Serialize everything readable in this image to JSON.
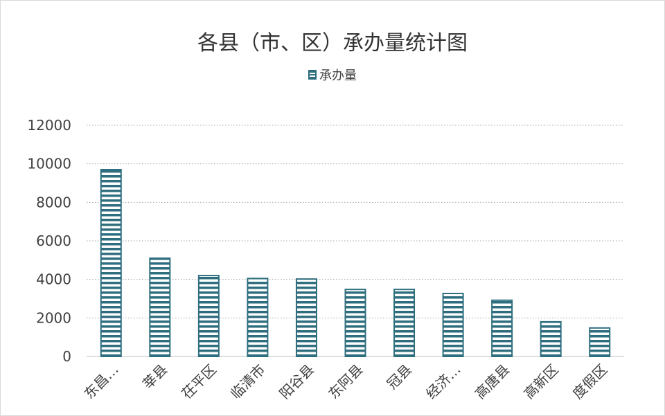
{
  "chart_data": {
    "type": "bar",
    "title": "各县（市、区）承办量统计图",
    "xlabel": "",
    "ylabel": "",
    "legend_position": "top",
    "grid": true,
    "ylim": [
      0,
      12000
    ],
    "yticks": [
      0,
      2000,
      4000,
      6000,
      8000,
      10000,
      12000
    ],
    "categories": [
      "东昌…",
      "莘县",
      "茌平区",
      "临清市",
      "阳谷县",
      "东阿县",
      "冠县",
      "经济…",
      "高唐县",
      "高新区",
      "度假区"
    ],
    "series": [
      {
        "name": "承办量",
        "values": [
          9700,
          5100,
          4200,
          4050,
          4020,
          3480,
          3480,
          3270,
          2920,
          1800,
          1480
        ]
      }
    ]
  },
  "colors": {
    "bar_stroke": "#2e6e7e",
    "bar_stripe": "#2e6e7e",
    "grid": "#a6a6a6",
    "axis_text": "#404040"
  }
}
